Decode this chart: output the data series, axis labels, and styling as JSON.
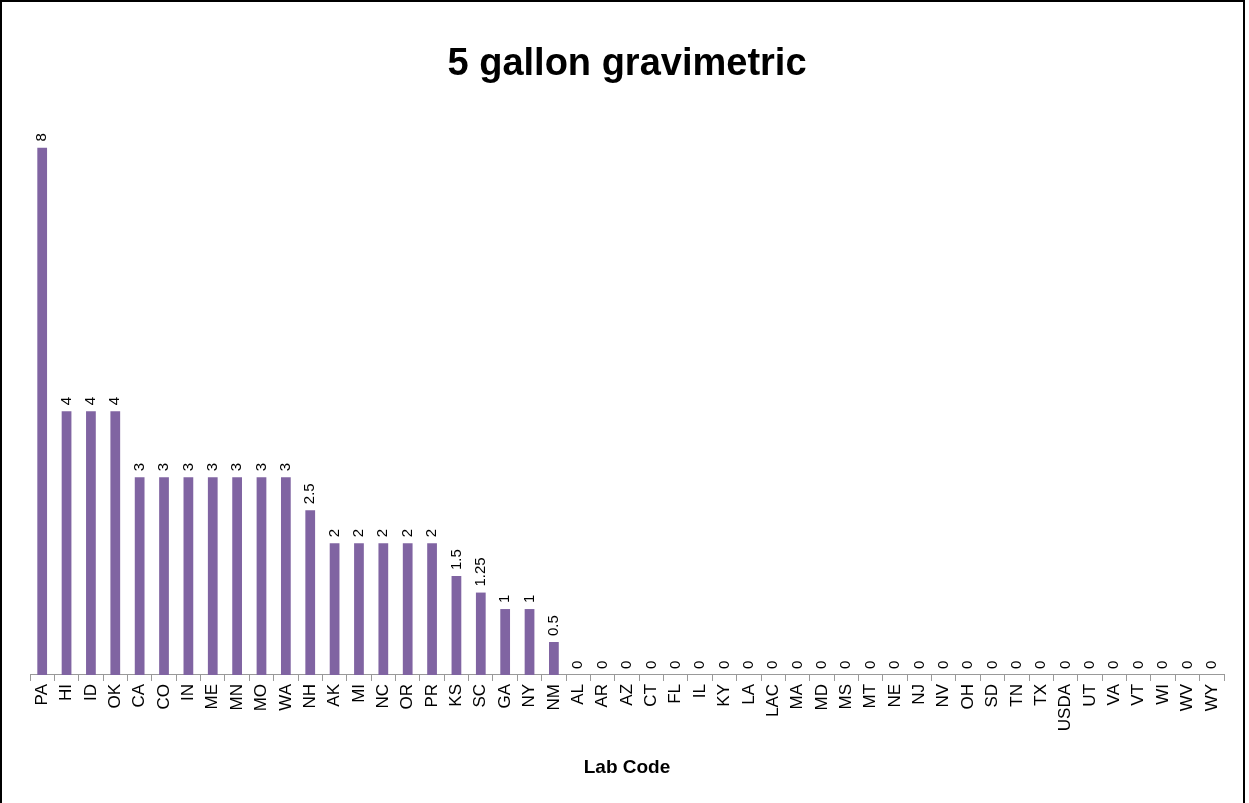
{
  "chart_data": {
    "type": "bar",
    "title": "5 gallon gravimetric",
    "xlabel": "Lab Code",
    "categories": [
      "PA",
      "HI",
      "ID",
      "OK",
      "CA",
      "CO",
      "IN",
      "ME",
      "MN",
      "MO",
      "WA",
      "NH",
      "AK",
      "MI",
      "NC",
      "OR",
      "PR",
      "KS",
      "SC",
      "GA",
      "NY",
      "NM",
      "AL",
      "AR",
      "AZ",
      "CT",
      "FL",
      "IL",
      "KY",
      "LA",
      "LAC",
      "MA",
      "MD",
      "MS",
      "MT",
      "NE",
      "NJ",
      "NV",
      "OH",
      "SD",
      "TN",
      "TX",
      "USDA",
      "UT",
      "VA",
      "VT",
      "WI",
      "WV",
      "WY"
    ],
    "values": [
      8,
      4,
      4,
      4,
      3,
      3,
      3,
      3,
      3,
      3,
      3,
      2.5,
      2,
      2,
      2,
      2,
      2,
      1.5,
      1.25,
      1,
      1,
      0.5,
      0,
      0,
      0,
      0,
      0,
      0,
      0,
      0,
      0,
      0,
      0,
      0,
      0,
      0,
      0,
      0,
      0,
      0,
      0,
      0,
      0,
      0,
      0,
      0,
      0,
      0,
      0
    ],
    "color": "#8064a2",
    "data_labels": true,
    "grid": false,
    "legend": false
  }
}
